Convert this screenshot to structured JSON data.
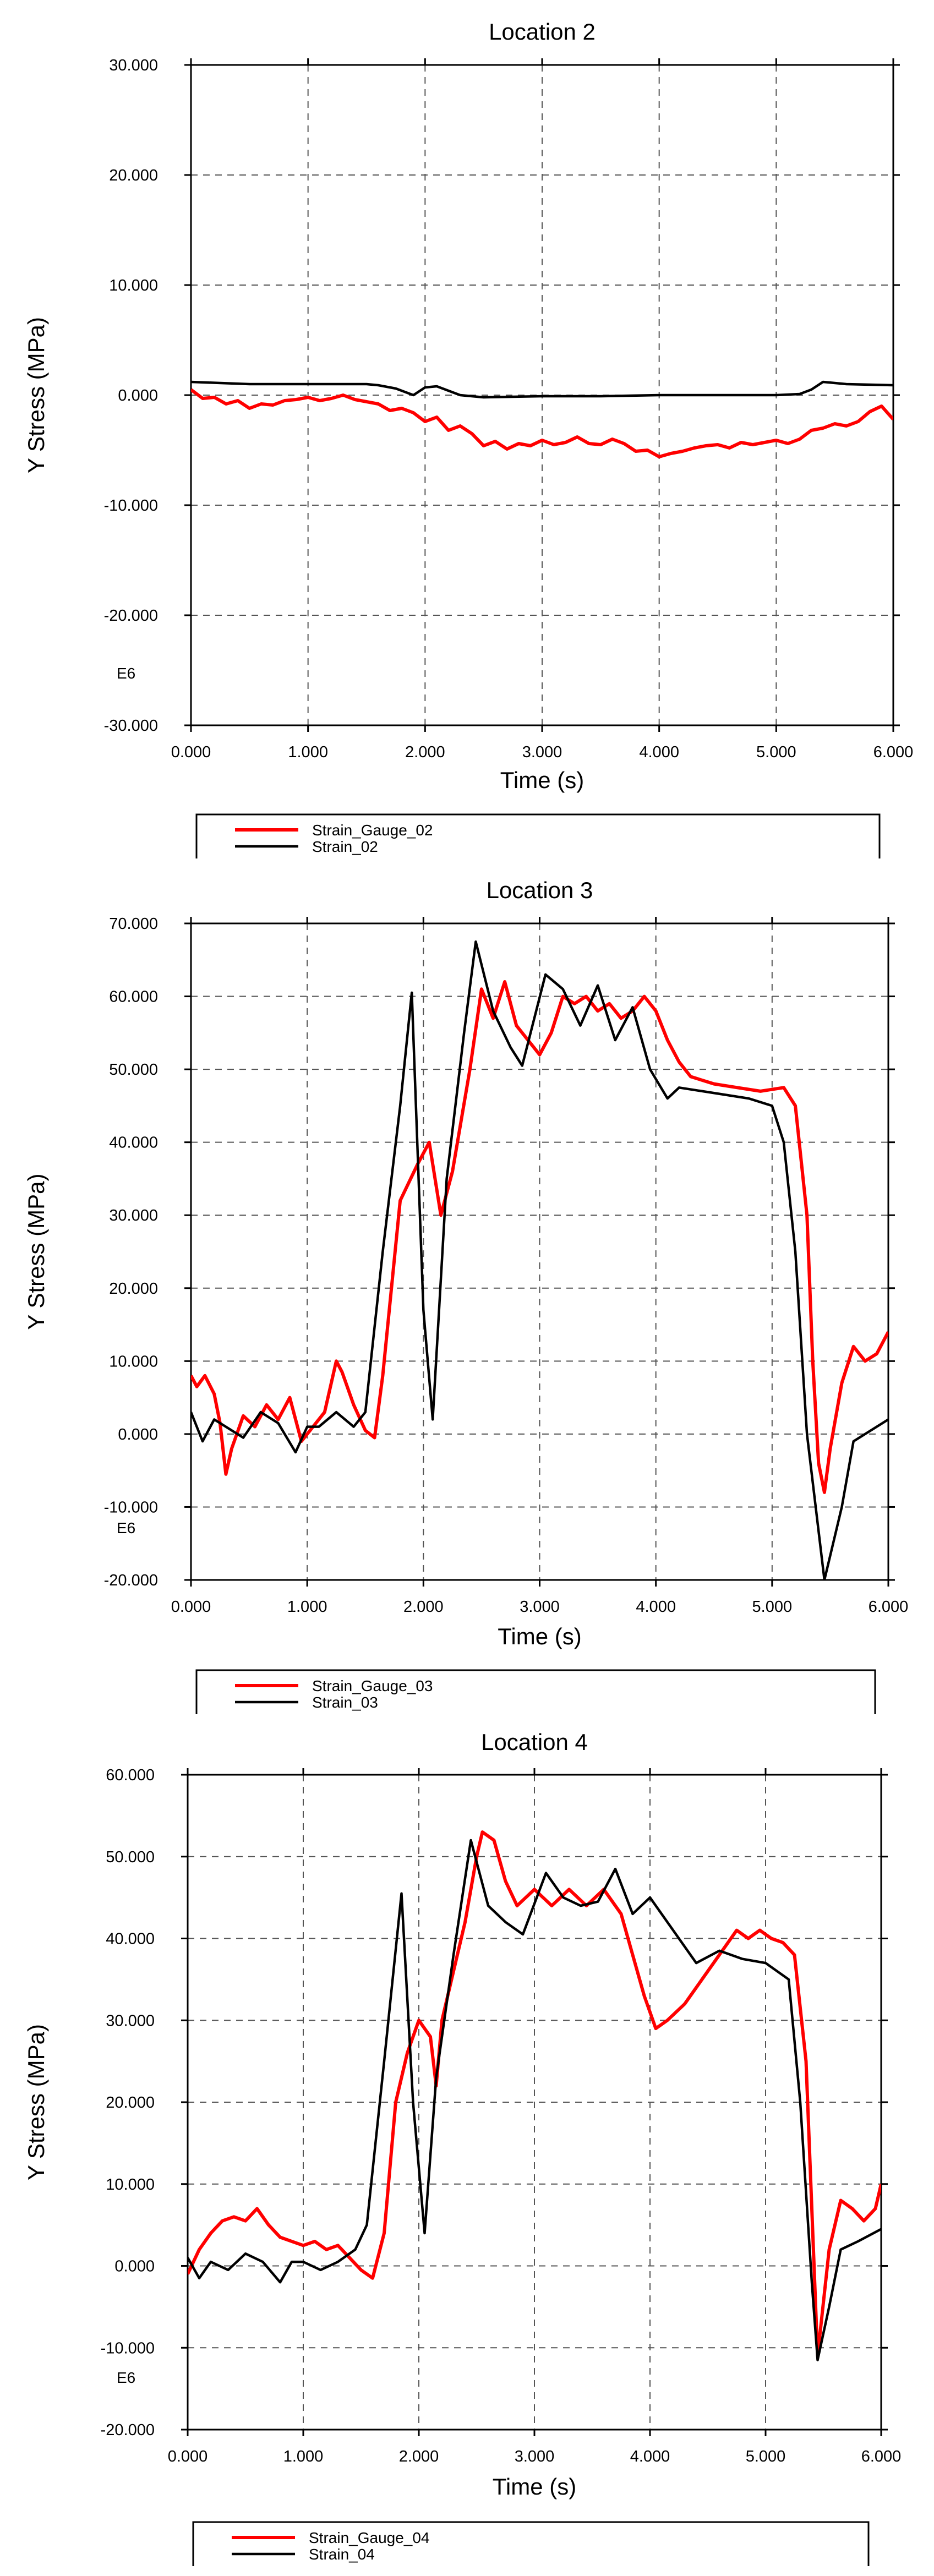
{
  "chart_data": [
    {
      "type": "line",
      "title": "Location 2",
      "xlabel": "Time (s)",
      "ylabel": "Y Stress (MPa)",
      "scale_note": "E6",
      "xlim": [
        0,
        6
      ],
      "ylim": [
        -30,
        30
      ],
      "xticks": [
        "0.000",
        "1.000",
        "2.000",
        "3.000",
        "4.000",
        "5.000",
        "6.000"
      ],
      "yticks": [
        "-30.000",
        "-20.000",
        "-10.000",
        "0.000",
        "10.000",
        "20.000",
        "30.000"
      ],
      "grid": true,
      "legend_position": "bottom",
      "series": [
        {
          "name": "Strain_Gauge_02",
          "color": "#ff0000",
          "x": [
            0,
            0.1,
            0.2,
            0.3,
            0.4,
            0.5,
            0.6,
            0.7,
            0.8,
            0.9,
            1.0,
            1.1,
            1.2,
            1.3,
            1.4,
            1.5,
            1.6,
            1.7,
            1.8,
            1.9,
            2.0,
            2.1,
            2.2,
            2.3,
            2.4,
            2.5,
            2.6,
            2.7,
            2.8,
            2.9,
            3.0,
            3.1,
            3.2,
            3.3,
            3.4,
            3.5,
            3.6,
            3.7,
            3.8,
            3.9,
            4.0,
            4.1,
            4.2,
            4.3,
            4.4,
            4.5,
            4.6,
            4.7,
            4.8,
            4.9,
            5.0,
            5.1,
            5.2,
            5.3,
            5.4,
            5.5,
            5.6,
            5.7,
            5.8,
            5.9,
            6.0
          ],
          "values": [
            0.5,
            -0.3,
            -0.2,
            -0.8,
            -0.5,
            -1.2,
            -0.8,
            -0.9,
            -0.5,
            -0.4,
            -0.2,
            -0.5,
            -0.3,
            0.0,
            -0.4,
            -0.6,
            -0.8,
            -1.4,
            -1.2,
            -1.6,
            -2.4,
            -2.0,
            -3.2,
            -2.8,
            -3.5,
            -4.6,
            -4.2,
            -4.9,
            -4.4,
            -4.6,
            -4.1,
            -4.5,
            -4.3,
            -3.8,
            -4.4,
            -4.5,
            -4.0,
            -4.4,
            -5.1,
            -5.0,
            -5.6,
            -5.3,
            -5.1,
            -4.8,
            -4.6,
            -4.5,
            -4.8,
            -4.3,
            -4.5,
            -4.3,
            -4.1,
            -4.4,
            -4.0,
            -3.2,
            -3.0,
            -2.6,
            -2.8,
            -2.4,
            -1.5,
            -1.0,
            -2.2
          ]
        },
        {
          "name": "Strain_02",
          "color": "#000000",
          "x": [
            0,
            0.5,
            1.0,
            1.5,
            1.6,
            1.75,
            1.9,
            2.0,
            2.1,
            2.3,
            2.5,
            3.0,
            3.5,
            4.0,
            4.5,
            5.0,
            5.2,
            5.3,
            5.4,
            5.6,
            6.0
          ],
          "values": [
            1.2,
            1.0,
            1.0,
            1.0,
            0.9,
            0.6,
            0.0,
            0.7,
            0.8,
            0.0,
            -0.2,
            -0.1,
            -0.1,
            0.0,
            0.0,
            0.0,
            0.1,
            0.5,
            1.2,
            1.0,
            0.9
          ]
        }
      ]
    },
    {
      "type": "line",
      "title": "Location 3",
      "xlabel": "Time (s)",
      "ylabel": "Y Stress (MPa)",
      "scale_note": "E6",
      "xlim": [
        0,
        6
      ],
      "ylim": [
        -20,
        70
      ],
      "xticks": [
        "0.000",
        "1.000",
        "2.000",
        "3.000",
        "4.000",
        "5.000",
        "6.000"
      ],
      "yticks": [
        "-20.000",
        "-10.000",
        "0.000",
        "10.000",
        "20.000",
        "30.000",
        "40.000",
        "50.000",
        "60.000",
        "70.000"
      ],
      "grid": true,
      "legend_position": "bottom",
      "series": [
        {
          "name": "Strain_Gauge_03",
          "color": "#ff0000",
          "x": [
            0,
            0.05,
            0.12,
            0.2,
            0.25,
            0.3,
            0.35,
            0.45,
            0.55,
            0.65,
            0.75,
            0.85,
            0.95,
            1.05,
            1.15,
            1.25,
            1.3,
            1.4,
            1.5,
            1.58,
            1.65,
            1.8,
            1.95,
            2.05,
            2.15,
            2.25,
            2.4,
            2.5,
            2.6,
            2.7,
            2.8,
            2.9,
            3.0,
            3.1,
            3.2,
            3.3,
            3.4,
            3.5,
            3.6,
            3.7,
            3.8,
            3.9,
            4.0,
            4.1,
            4.2,
            4.3,
            4.5,
            4.7,
            4.9,
            5.1,
            5.2,
            5.3,
            5.35,
            5.4,
            5.45,
            5.5,
            5.6,
            5.7,
            5.8,
            5.9,
            6.0
          ],
          "values": [
            8.0,
            6.5,
            8.0,
            5.5,
            1.5,
            -5.5,
            -2.0,
            2.5,
            1.0,
            4.0,
            2.0,
            5.0,
            -1.0,
            1.0,
            3.0,
            10.0,
            8.5,
            4.0,
            0.5,
            -0.5,
            8.0,
            32.0,
            37.0,
            40.0,
            30.0,
            36.0,
            50.0,
            61.0,
            57.0,
            62.0,
            56.0,
            54.0,
            52.0,
            55.0,
            60.0,
            59.0,
            60.0,
            58.0,
            59.0,
            57.0,
            58.0,
            60.0,
            58.0,
            54.0,
            51.0,
            49.0,
            48.0,
            47.5,
            47.0,
            47.5,
            45.0,
            30.0,
            10.0,
            -4.0,
            -8.0,
            -2.0,
            7.0,
            12.0,
            10.0,
            11.0,
            14.0
          ]
        },
        {
          "name": "Strain_03",
          "color": "#000000",
          "x": [
            0,
            0.1,
            0.2,
            0.3,
            0.45,
            0.6,
            0.75,
            0.9,
            1.0,
            1.1,
            1.25,
            1.4,
            1.5,
            1.65,
            1.8,
            1.9,
            2.0,
            2.08,
            2.2,
            2.35,
            2.45,
            2.6,
            2.75,
            2.85,
            3.05,
            3.2,
            3.35,
            3.5,
            3.65,
            3.8,
            3.95,
            4.1,
            4.2,
            4.4,
            4.6,
            4.8,
            5.0,
            5.1,
            5.2,
            5.3,
            5.45,
            5.6,
            5.7,
            5.8,
            6.0
          ],
          "values": [
            3.0,
            -1.0,
            2.0,
            1.0,
            -0.5,
            3.0,
            1.5,
            -2.5,
            1.0,
            1.0,
            3.0,
            1.0,
            3.0,
            25.0,
            45.0,
            60.5,
            17.0,
            2.0,
            35.0,
            55.0,
            67.5,
            58.0,
            53.0,
            50.5,
            63.0,
            61.0,
            56.0,
            61.5,
            54.0,
            58.5,
            50.0,
            46.0,
            47.5,
            47.0,
            46.5,
            46.0,
            45.0,
            40.0,
            25.0,
            0.0,
            -20.0,
            -10.0,
            -1.0,
            0.0,
            2.0
          ]
        }
      ]
    },
    {
      "type": "line",
      "title": "Location 4",
      "xlabel": "Time (s)",
      "ylabel": "Y Stress (MPa)",
      "scale_note": "E6",
      "xlim": [
        0,
        6
      ],
      "ylim": [
        -20,
        60
      ],
      "xticks": [
        "0.000",
        "1.000",
        "2.000",
        "3.000",
        "4.000",
        "5.000",
        "6.000"
      ],
      "yticks": [
        "-20.000",
        "-10.000",
        "0.000",
        "10.000",
        "20.000",
        "30.000",
        "40.000",
        "50.000",
        "60.000"
      ],
      "grid": true,
      "legend_position": "bottom",
      "series": [
        {
          "name": "Strain_Gauge_04",
          "color": "#ff0000",
          "x": [
            0,
            0.1,
            0.2,
            0.3,
            0.4,
            0.5,
            0.6,
            0.7,
            0.8,
            0.9,
            1.0,
            1.1,
            1.2,
            1.3,
            1.4,
            1.5,
            1.6,
            1.7,
            1.8,
            1.9,
            2.0,
            2.1,
            2.15,
            2.2,
            2.3,
            2.4,
            2.5,
            2.55,
            2.65,
            2.75,
            2.85,
            3.0,
            3.15,
            3.3,
            3.45,
            3.6,
            3.75,
            3.85,
            3.95,
            4.05,
            4.15,
            4.3,
            4.45,
            4.6,
            4.75,
            4.85,
            4.95,
            5.05,
            5.15,
            5.25,
            5.35,
            5.45,
            5.55,
            5.65,
            5.75,
            5.85,
            5.95,
            6.0
          ],
          "values": [
            -1.0,
            2.0,
            4.0,
            5.5,
            6.0,
            5.5,
            7.0,
            5.0,
            3.5,
            3.0,
            2.5,
            3.0,
            2.0,
            2.5,
            1.0,
            -0.5,
            -1.5,
            4.0,
            20.0,
            26.0,
            30.0,
            28.0,
            22.0,
            30.0,
            36.0,
            42.0,
            50.0,
            53.0,
            52.0,
            47.0,
            44.0,
            46.0,
            44.0,
            46.0,
            44.0,
            46.0,
            43.0,
            38.0,
            33.0,
            29.0,
            30.0,
            32.0,
            35.0,
            38.0,
            41.0,
            40.0,
            41.0,
            40.0,
            39.5,
            38.0,
            25.0,
            -11.0,
            2.0,
            8.0,
            7.0,
            5.5,
            7.0,
            10.0
          ]
        },
        {
          "name": "Strain_04",
          "color": "#000000",
          "x": [
            0,
            0.1,
            0.2,
            0.35,
            0.5,
            0.65,
            0.8,
            0.9,
            1.0,
            1.15,
            1.3,
            1.45,
            1.55,
            1.7,
            1.85,
            1.95,
            2.05,
            2.15,
            2.3,
            2.45,
            2.6,
            2.75,
            2.9,
            3.1,
            3.25,
            3.4,
            3.55,
            3.7,
            3.85,
            4.0,
            4.2,
            4.4,
            4.6,
            4.8,
            5.0,
            5.2,
            5.3,
            5.4,
            5.45,
            5.55,
            5.65,
            5.8,
            6.0
          ],
          "values": [
            1.0,
            -1.5,
            0.5,
            -0.5,
            1.5,
            0.5,
            -2.0,
            0.5,
            0.5,
            -0.5,
            0.5,
            2.0,
            5.0,
            25.0,
            45.5,
            20.0,
            4.0,
            23.0,
            38.0,
            52.0,
            44.0,
            42.0,
            40.5,
            48.0,
            45.0,
            44.0,
            44.5,
            48.5,
            43.0,
            45.0,
            41.0,
            37.0,
            38.5,
            37.5,
            37.0,
            35.0,
            20.0,
            -2.0,
            -11.5,
            -5.0,
            2.0,
            3.0,
            4.5
          ]
        }
      ]
    }
  ]
}
